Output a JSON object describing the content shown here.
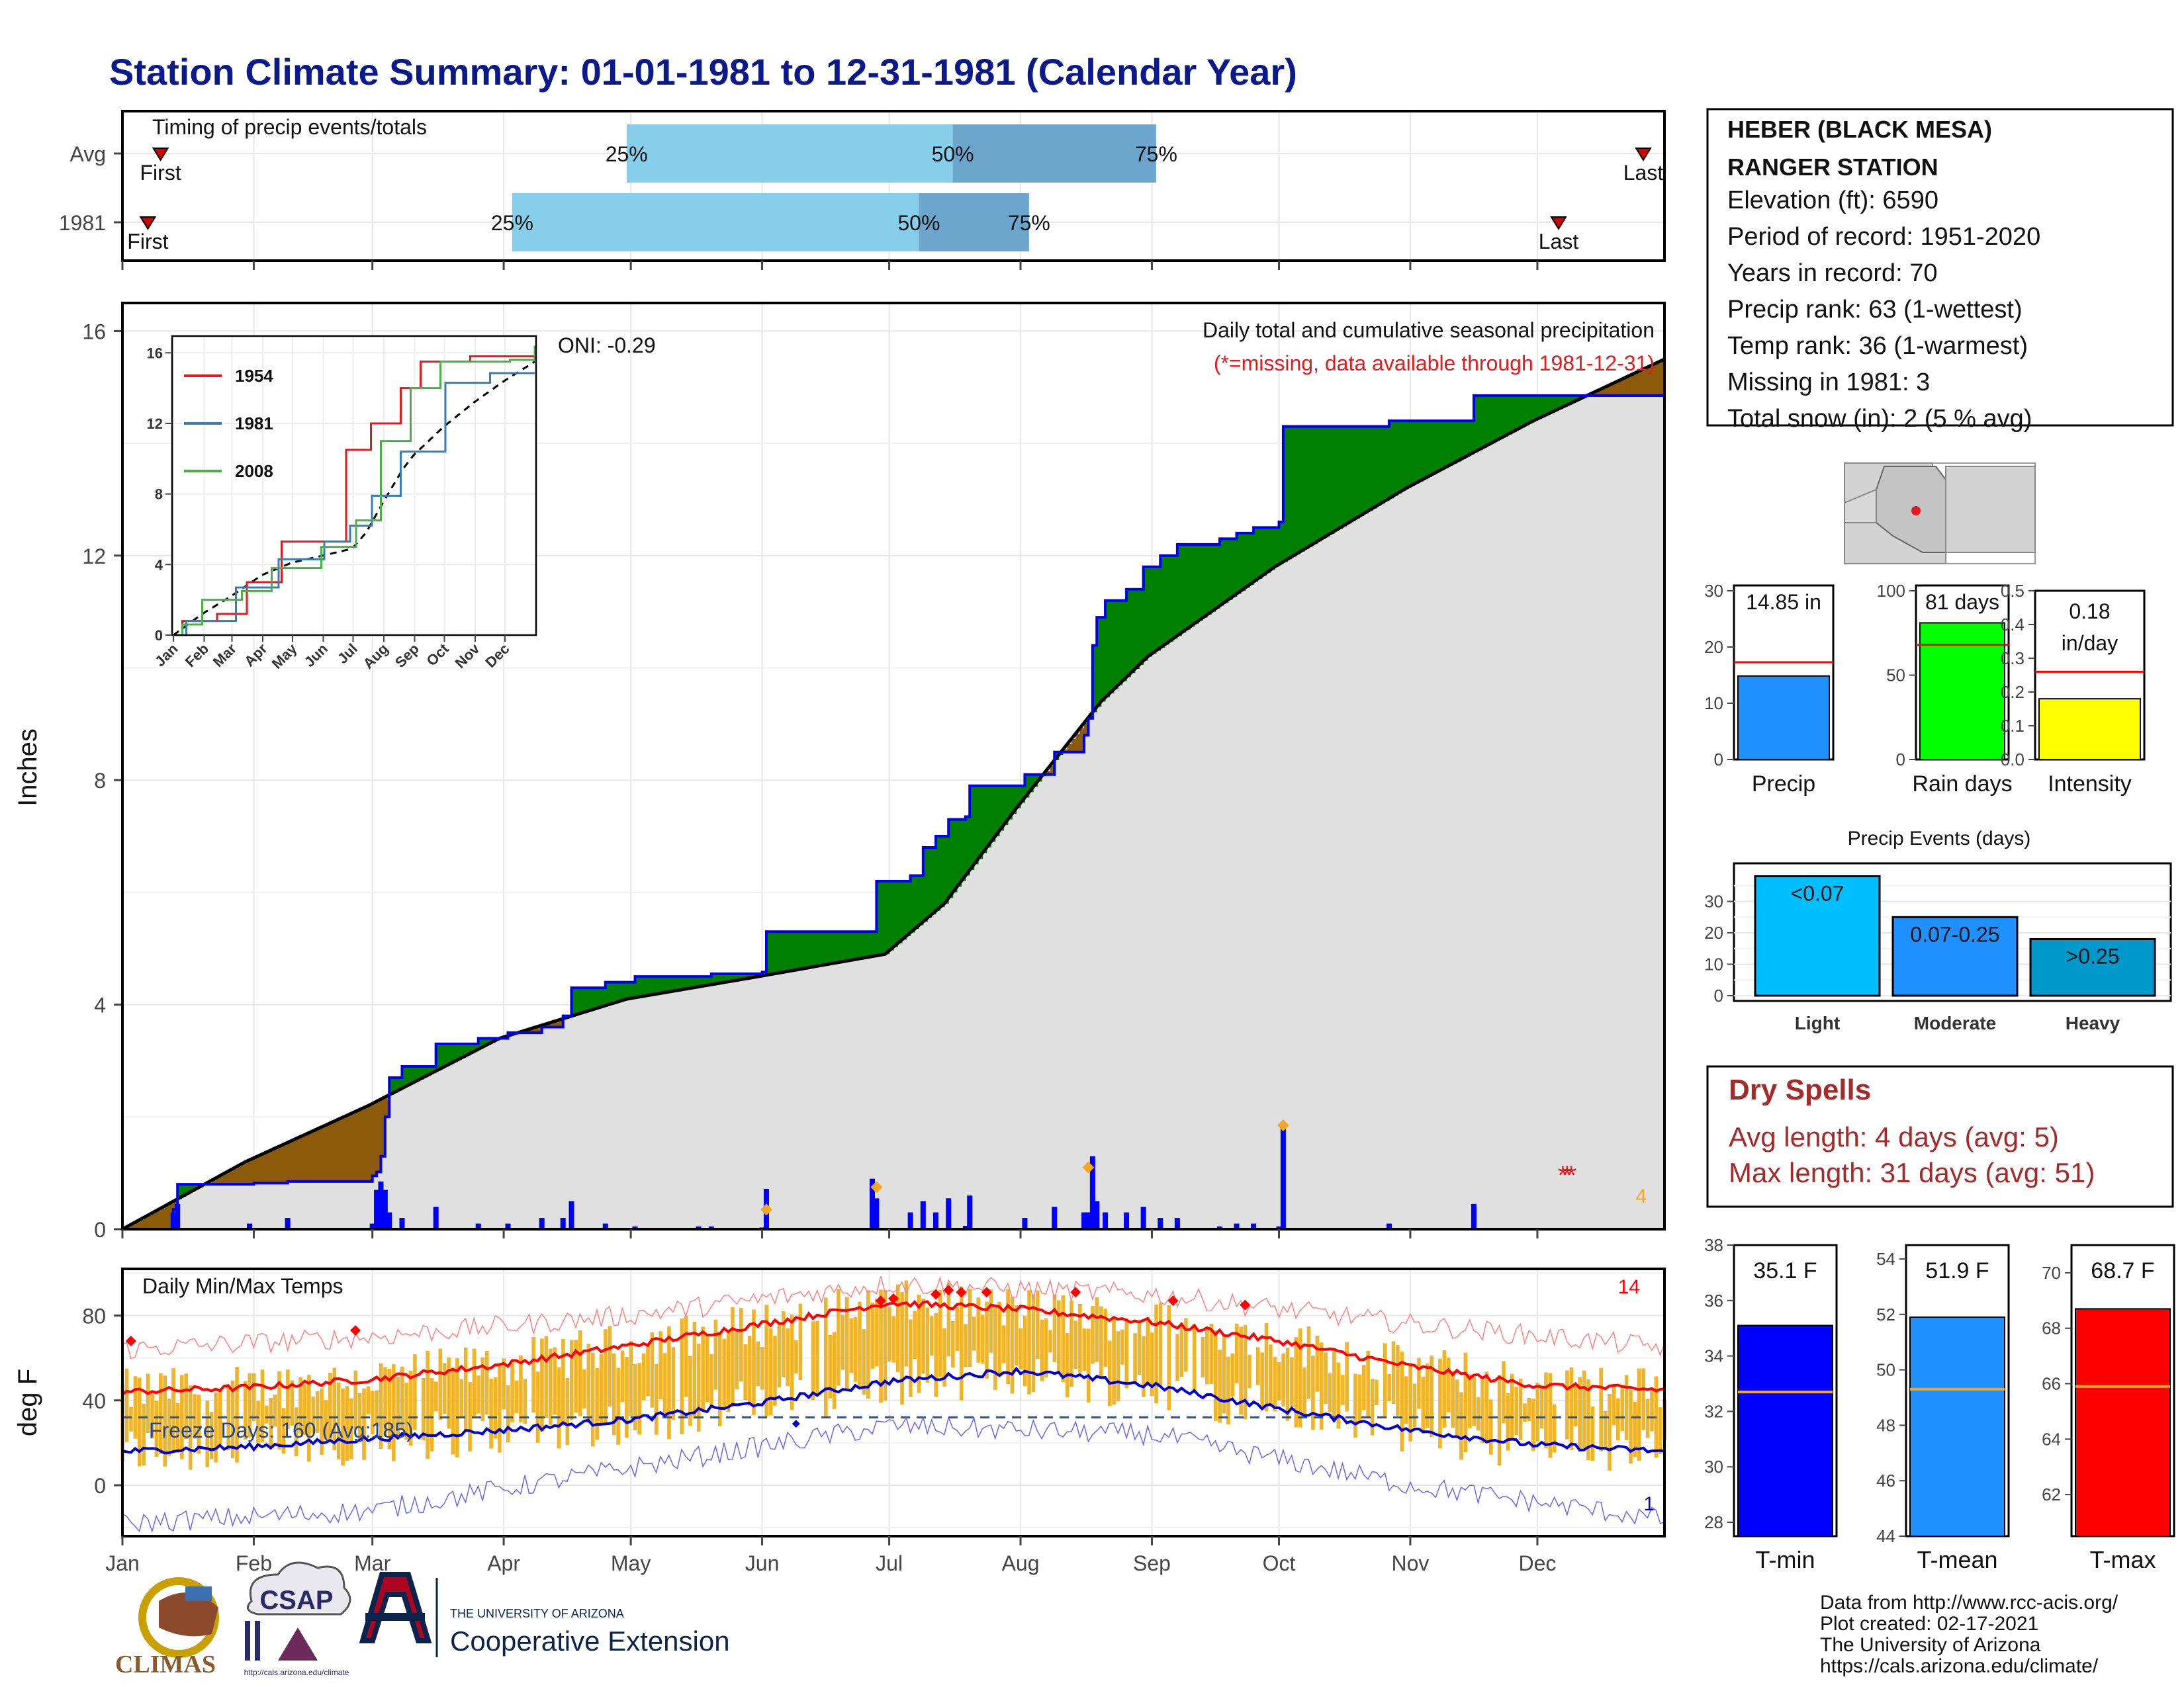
{
  "title": "Station Climate Summary: 01-01-1981 to 12-31-1981 (Calendar Year)",
  "months": [
    "Jan",
    "Feb",
    "Mar",
    "Apr",
    "May",
    "Jun",
    "Jul",
    "Aug",
    "Sep",
    "Oct",
    "Nov",
    "Dec"
  ],
  "timing": {
    "label": "Timing of precip events/totals",
    "rows": [
      {
        "name": "Avg",
        "first_doy": 10,
        "p25_doy": 120,
        "p50_doy": 197,
        "p75_doy": 245,
        "last_doy": 360
      },
      {
        "name": "1981",
        "first_doy": 7,
        "p25_doy": 93,
        "p50_doy": 189,
        "p75_doy": 215,
        "last_doy": 340
      }
    ],
    "first_label": "First",
    "last_label": "Last",
    "p25_label": "25%",
    "p50_label": "50%",
    "p75_label": "75%"
  },
  "station": {
    "name_line1": "HEBER (BLACK MESA)",
    "name_line2": "RANGER STATION",
    "elevation": "Elevation (ft): 6590",
    "period": "Period of record: 1951-2020",
    "years": "Years in record: 70",
    "precip_rank": "Precip rank: 63 (1-wettest)",
    "temp_rank": "Temp rank: 36 (1-warmest)",
    "missing": "Missing in 1981: 3",
    "snow": "Total snow (in): 2 (5 % avg)"
  },
  "precip_panel": {
    "ylabel": "Inches",
    "oni": "ONI: -0.29",
    "note1": "Daily total and cumulative seasonal precipitation",
    "note2": "(*=missing, data available through 1981-12-31)",
    "corner_count": "4"
  },
  "temp_panel": {
    "ylabel": "deg F",
    "label": "Daily Min/Max Temps",
    "freeze": "Freeze Days: 160 (Avg:185)",
    "record_high_count": "14",
    "record_low_count": "1"
  },
  "summary": {
    "precip": {
      "label": "Precip",
      "value_text": "14.85 in",
      "value": 14.85,
      "avg": 17.3,
      "ymax": 30
    },
    "raindays": {
      "label": "Rain days",
      "value_text": "81 days",
      "value": 81,
      "avg": 68,
      "ymax": 100
    },
    "intensity": {
      "label": "Intensity",
      "value_text1": "0.18",
      "value_text2": "in/day",
      "value": 0.18,
      "avg": 0.26,
      "ymax": 0.5
    }
  },
  "events": {
    "title": "Precip Events (days)",
    "bars": [
      {
        "category": "Light",
        "range": "<0.07",
        "value": 38
      },
      {
        "category": "Moderate",
        "range": "0.07-0.25",
        "value": 25
      },
      {
        "category": "Heavy",
        "range": ">0.25",
        "value": 18
      }
    ]
  },
  "dry": {
    "title": "Dry Spells",
    "avg": "Avg length: 4 days (avg: 5)",
    "max": "Max length: 31 days (avg: 51)"
  },
  "temps": {
    "tmin": {
      "label": "T-min",
      "value_text": "35.1 F",
      "value": 35.1,
      "avg": 32.7,
      "ylim": [
        27.5,
        38
      ]
    },
    "tmean": {
      "label": "T-mean",
      "value_text": "51.9 F",
      "value": 51.9,
      "avg": 49.3,
      "ylim": [
        44,
        54.5
      ]
    },
    "tmax": {
      "label": "T-max",
      "value_text": "68.7 F",
      "value": 68.7,
      "avg": 65.9,
      "ylim": [
        60.5,
        71
      ]
    }
  },
  "footer": {
    "l1": "Data from http://www.rcc-acis.org/",
    "l2": "Plot created: 02-17-2021",
    "l3": "The University of Arizona",
    "l4": "https://cals.arizona.edu/climate/"
  },
  "logos": {
    "climas": "CLIMAS",
    "csap": "CSAP",
    "csap_url": "http://cals.arizona.edu/climate",
    "ua_small": "THE UNIVERSITY OF ARIZONA",
    "ua_big": "Cooperative Extension"
  },
  "chart_data": [
    {
      "type": "area",
      "title": "Daily total and cumulative seasonal precipitation",
      "ylabel": "Inches",
      "ylim": [
        0,
        16.5
      ],
      "yticks": [
        0,
        4,
        8,
        12,
        16
      ],
      "cumulative_1981": [
        [
          1,
          0
        ],
        [
          12,
          0
        ],
        [
          13,
          0.35
        ],
        [
          14,
          0.8
        ],
        [
          32,
          0.82
        ],
        [
          40,
          0.85
        ],
        [
          60,
          0.95
        ],
        [
          61,
          1.02
        ],
        [
          62,
          1.3
        ],
        [
          63,
          2.0
        ],
        [
          64,
          2.7
        ],
        [
          67,
          2.9
        ],
        [
          75,
          3.3
        ],
        [
          85,
          3.4
        ],
        [
          92,
          3.5
        ],
        [
          100,
          3.6
        ],
        [
          105,
          3.8
        ],
        [
          107,
          4.3
        ],
        [
          115,
          4.4
        ],
        [
          122,
          4.5
        ],
        [
          137,
          4.5
        ],
        [
          140,
          4.55
        ],
        [
          152,
          4.58
        ],
        [
          153,
          5.3
        ],
        [
          178,
          5.3
        ],
        [
          179,
          6.2
        ],
        [
          187,
          6.3
        ],
        [
          190,
          6.8
        ],
        [
          193,
          7.0
        ],
        [
          196,
          7.3
        ],
        [
          200,
          7.35
        ],
        [
          201,
          7.9
        ],
        [
          210,
          7.9
        ],
        [
          214,
          8.1
        ],
        [
          221,
          8.5
        ],
        [
          228,
          8.8
        ],
        [
          229,
          9.1
        ],
        [
          230,
          10.4
        ],
        [
          231,
          10.9
        ],
        [
          233,
          11.2
        ],
        [
          238,
          11.4
        ],
        [
          242,
          11.8
        ],
        [
          246,
          12.0
        ],
        [
          250,
          12.2
        ],
        [
          260,
          12.3
        ],
        [
          264,
          12.4
        ],
        [
          268,
          12.5
        ],
        [
          274,
          12.6
        ],
        [
          275,
          14.3
        ],
        [
          300,
          14.4
        ],
        [
          320,
          14.85
        ],
        [
          365,
          14.85
        ]
      ],
      "cumulative_avg": [
        [
          1,
          0
        ],
        [
          30,
          1.2
        ],
        [
          59,
          2.2
        ],
        [
          90,
          3.4
        ],
        [
          120,
          4.1
        ],
        [
          151,
          4.5
        ],
        [
          181,
          4.9
        ],
        [
          195,
          5.8
        ],
        [
          212,
          7.5
        ],
        [
          232,
          9.4
        ],
        [
          243,
          10.2
        ],
        [
          273,
          11.8
        ],
        [
          304,
          13.2
        ],
        [
          334,
          14.4
        ],
        [
          365,
          15.5
        ]
      ],
      "daily": [
        [
          13,
          0.3
        ],
        [
          14,
          0.45
        ],
        [
          31,
          0.1
        ],
        [
          40,
          0.2
        ],
        [
          60,
          0.1
        ],
        [
          61,
          0.7
        ],
        [
          62,
          0.85
        ],
        [
          63,
          0.7
        ],
        [
          64,
          0.3
        ],
        [
          67,
          0.2
        ],
        [
          75,
          0.4
        ],
        [
          85,
          0.1
        ],
        [
          92,
          0.1
        ],
        [
          100,
          0.2
        ],
        [
          105,
          0.2
        ],
        [
          107,
          0.5
        ],
        [
          115,
          0.1
        ],
        [
          122,
          0.05
        ],
        [
          137,
          0.05
        ],
        [
          140,
          0.05
        ],
        [
          152,
          0.03
        ],
        [
          153,
          0.72
        ],
        [
          178,
          0.9
        ],
        [
          179,
          0.55
        ],
        [
          187,
          0.3
        ],
        [
          190,
          0.5
        ],
        [
          193,
          0.3
        ],
        [
          196,
          0.55
        ],
        [
          200,
          0.06
        ],
        [
          201,
          0.6
        ],
        [
          214,
          0.2
        ],
        [
          221,
          0.4
        ],
        [
          228,
          0.3
        ],
        [
          229,
          0.3
        ],
        [
          230,
          1.3
        ],
        [
          231,
          0.5
        ],
        [
          233,
          0.3
        ],
        [
          238,
          0.3
        ],
        [
          242,
          0.4
        ],
        [
          246,
          0.2
        ],
        [
          250,
          0.2
        ],
        [
          260,
          0.05
        ],
        [
          264,
          0.1
        ],
        [
          268,
          0.1
        ],
        [
          274,
          0.05
        ],
        [
          275,
          1.8
        ],
        [
          300,
          0.1
        ],
        [
          320,
          0.45
        ]
      ],
      "daily_record_markers": [
        [
          153,
          0.35
        ],
        [
          179,
          0.75
        ],
        [
          229,
          1.1
        ],
        [
          275,
          1.85
        ]
      ],
      "missing_days": [
        341,
        342,
        343
      ]
    },
    {
      "type": "line",
      "title": "",
      "ylim": [
        0,
        16.5
      ],
      "yticks": [
        0,
        4,
        8,
        12,
        16
      ],
      "xticks": [
        "Jan",
        "Feb",
        "Mar",
        "Apr",
        "May",
        "Jun",
        "Jul",
        "Aug",
        "Sep",
        "Oct",
        "Nov",
        "Dec"
      ],
      "series": [
        {
          "name": "1954",
          "color": "#e41a1c",
          "values": [
            [
              1,
              0
            ],
            [
              10,
              0.8
            ],
            [
              45,
              1.2
            ],
            [
              75,
              3.0
            ],
            [
              110,
              5.3
            ],
            [
              140,
              5.3
            ],
            [
              175,
              10.5
            ],
            [
              200,
              12.0
            ],
            [
              230,
              14.0
            ],
            [
              250,
              15.5
            ],
            [
              300,
              15.8
            ],
            [
              365,
              16.3
            ]
          ]
        },
        {
          "name": "1981",
          "color": "#377eb8",
          "values": [
            [
              1,
              0
            ],
            [
              14,
              0.8
            ],
            [
              64,
              2.7
            ],
            [
              107,
              4.3
            ],
            [
              153,
              5.3
            ],
            [
              179,
              6.2
            ],
            [
              201,
              7.9
            ],
            [
              230,
              10.4
            ],
            [
              275,
              14.3
            ],
            [
              320,
              14.85
            ],
            [
              365,
              14.85
            ]
          ]
        },
        {
          "name": "2008",
          "color": "#4daf4a",
          "values": [
            [
              1,
              0
            ],
            [
              10,
              0.6
            ],
            [
              30,
              2.0
            ],
            [
              70,
              2.5
            ],
            [
              100,
              3.8
            ],
            [
              150,
              5.0
            ],
            [
              185,
              6.5
            ],
            [
              210,
              11.0
            ],
            [
              240,
              14.0
            ],
            [
              270,
              15.5
            ],
            [
              340,
              15.6
            ],
            [
              365,
              16.4
            ]
          ]
        }
      ]
    },
    {
      "type": "bar",
      "title": "Timing of precip events/totals",
      "categories": [
        "Avg",
        "1981"
      ],
      "series": [
        {
          "name": "25%",
          "values": [
            120,
            93
          ]
        },
        {
          "name": "50%",
          "values": [
            197,
            189
          ]
        },
        {
          "name": "75%",
          "values": [
            245,
            215
          ]
        }
      ]
    },
    {
      "type": "line",
      "title": "Daily Min/Max Temps",
      "ylabel": "deg F",
      "ylim": [
        -24,
        102
      ],
      "yticks": [
        0,
        40,
        80
      ],
      "series": [
        {
          "name": "Avg max",
          "color": "#ff0000",
          "values": [
            [
              1,
              44
            ],
            [
              30,
              46
            ],
            [
              60,
              50
            ],
            [
              91,
              57
            ],
            [
              121,
              66
            ],
            [
              152,
              76
            ],
            [
              182,
              86
            ],
            [
              213,
              83
            ],
            [
              244,
              77
            ],
            [
              274,
              68
            ],
            [
              305,
              56
            ],
            [
              335,
              47
            ],
            [
              365,
              45
            ]
          ]
        },
        {
          "name": "Avg min",
          "color": "#0000cc",
          "values": [
            [
              1,
              16
            ],
            [
              30,
              18
            ],
            [
              60,
              22
            ],
            [
              91,
              26
            ],
            [
              121,
              31
            ],
            [
              152,
              39
            ],
            [
              182,
              49
            ],
            [
              213,
              54
            ],
            [
              244,
              47
            ],
            [
              274,
              36
            ],
            [
              305,
              26
            ],
            [
              335,
              19
            ],
            [
              365,
              16
            ]
          ]
        },
        {
          "name": "Record max",
          "color": "#ff8080",
          "values": [
            [
              1,
              64
            ],
            [
              60,
              70
            ],
            [
              120,
              80
            ],
            [
              182,
              95
            ],
            [
              244,
              90
            ],
            [
              305,
              76
            ],
            [
              365,
              65
            ]
          ]
        },
        {
          "name": "Record min",
          "color": "#6666ee",
          "values": [
            [
              1,
              -18
            ],
            [
              60,
              -12
            ],
            [
              120,
              8
            ],
            [
              182,
              28
            ],
            [
              244,
              24
            ],
            [
              305,
              0
            ],
            [
              365,
              -16
            ]
          ]
        }
      ],
      "freeze_line": 32
    },
    {
      "type": "bar",
      "title": "Precip Events (days)",
      "categories": [
        "Light",
        "Moderate",
        "Heavy"
      ],
      "values": [
        38,
        25,
        18
      ]
    }
  ]
}
